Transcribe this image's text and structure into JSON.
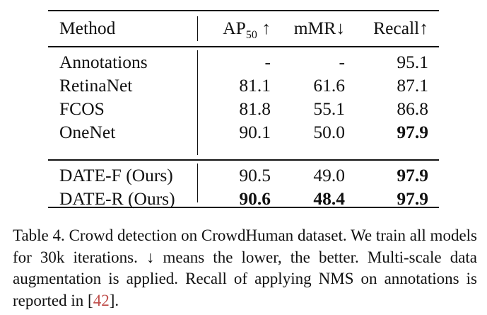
{
  "table": {
    "headers": {
      "method": "Method",
      "ap_main": "AP",
      "ap_sub": "50",
      "ap_arrow": "↑",
      "mmr": "mMR↓",
      "recall": "Recall↑"
    },
    "group1": [
      {
        "method": "Annotations",
        "ap": "-",
        "mmr": "-",
        "recall": "95.1"
      },
      {
        "method": "RetinaNet",
        "ap": "81.1",
        "mmr": "61.6",
        "recall": "87.1"
      },
      {
        "method": "FCOS",
        "ap": "81.8",
        "mmr": "55.1",
        "recall": "86.8"
      },
      {
        "method": "OneNet",
        "ap": "90.1",
        "mmr": "50.0",
        "recall": "97.9"
      }
    ],
    "group2": [
      {
        "method": "DATE-F (Ours)",
        "ap": "90.5",
        "mmr": "49.0",
        "recall": "97.9"
      },
      {
        "method": "DATE-R (Ours)",
        "ap": "90.6",
        "mmr": "48.4",
        "recall": "97.9"
      }
    ]
  },
  "caption": {
    "text_before_cite": "Table 4. Crowd detection on CrowdHuman dataset. We train all models for 30k iterations. ↓ means the lower, the better. Multi-scale data augmentation is applied. Recall of applying NMS on annotations is reported in [",
    "cite": "42",
    "text_after_cite": "]."
  }
}
